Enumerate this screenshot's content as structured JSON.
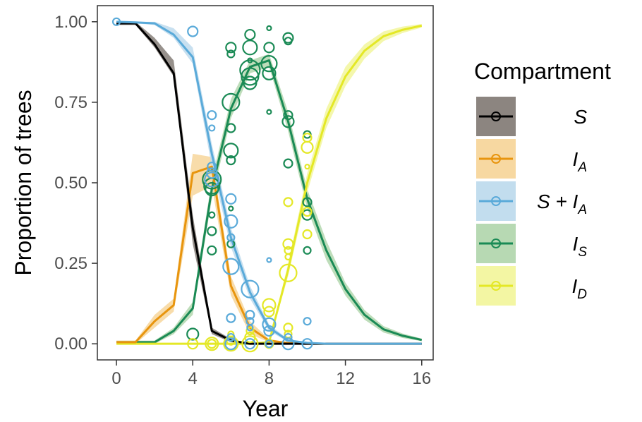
{
  "chart_data": {
    "type": "line",
    "xlabel": "Year",
    "ylabel": "Proportion of trees",
    "xlim": [
      -1,
      16.6
    ],
    "ylim": [
      -0.05,
      1.05
    ],
    "x_ticks": [
      0,
      4,
      8,
      12,
      16
    ],
    "x_tick_labels": [
      "0",
      "4",
      "8",
      "12",
      "16"
    ],
    "y_ticks": [
      0,
      0.25,
      0.5,
      0.75,
      1.0
    ],
    "y_tick_labels": [
      "0.00",
      "0.25",
      "0.50",
      "0.75",
      "1.00"
    ],
    "grid": false,
    "legend": {
      "title": "Compartment",
      "position": "right"
    },
    "series": [
      {
        "key": "IS",
        "label_main": "I",
        "label_sub": "S",
        "color": "#1a8a55",
        "band_color": "#b7d9b3",
        "x": [
          0,
          1,
          2,
          3,
          4,
          5,
          6,
          7,
          8,
          9,
          10,
          11,
          12,
          13,
          14,
          15,
          16
        ],
        "y": [
          0.005,
          0.005,
          0.005,
          0.04,
          0.11,
          0.48,
          0.73,
          0.86,
          0.88,
          0.69,
          0.45,
          0.29,
          0.17,
          0.09,
          0.045,
          0.025,
          0.012
        ],
        "band": [
          [
            0.0,
            0.01
          ],
          [
            0.0,
            0.01
          ],
          [
            0.0,
            0.01
          ],
          [
            0.03,
            0.05
          ],
          [
            0.09,
            0.13
          ],
          [
            0.45,
            0.51
          ],
          [
            0.7,
            0.76
          ],
          [
            0.84,
            0.88
          ],
          [
            0.86,
            0.9
          ],
          [
            0.66,
            0.72
          ],
          [
            0.42,
            0.48
          ],
          [
            0.26,
            0.32
          ],
          [
            0.15,
            0.19
          ],
          [
            0.075,
            0.105
          ],
          [
            0.035,
            0.055
          ],
          [
            0.018,
            0.032
          ],
          [
            0.008,
            0.016
          ]
        ],
        "points": [
          {
            "x": 4,
            "y": 0.03,
            "s": 8
          },
          {
            "x": 5,
            "y": 0.51,
            "s": 13
          },
          {
            "x": 5,
            "y": 0.49,
            "s": 11
          },
          {
            "x": 5,
            "y": 0.48,
            "s": 9
          },
          {
            "x": 5,
            "y": 0.4,
            "s": 4
          },
          {
            "x": 5,
            "y": 0.35,
            "s": 6
          },
          {
            "x": 5,
            "y": 0.29,
            "s": 6
          },
          {
            "x": 6,
            "y": 0.92,
            "s": 7
          },
          {
            "x": 6,
            "y": 0.9,
            "s": 5
          },
          {
            "x": 6,
            "y": 0.75,
            "s": 12
          },
          {
            "x": 6,
            "y": 0.67,
            "s": 6
          },
          {
            "x": 6,
            "y": 0.6,
            "s": 10
          },
          {
            "x": 6,
            "y": 0.57,
            "s": 6
          },
          {
            "x": 6,
            "y": 0.42,
            "s": 3
          },
          {
            "x": 6,
            "y": 0.31,
            "s": 5
          },
          {
            "x": 7,
            "y": 0.96,
            "s": 7
          },
          {
            "x": 7,
            "y": 0.92,
            "s": 10
          },
          {
            "x": 7,
            "y": 0.85,
            "s": 14
          },
          {
            "x": 7,
            "y": 0.83,
            "s": 12
          },
          {
            "x": 7,
            "y": 0.81,
            "s": 9
          },
          {
            "x": 7,
            "y": 0.88,
            "s": 3
          },
          {
            "x": 8,
            "y": 0.98,
            "s": 3
          },
          {
            "x": 8,
            "y": 0.92,
            "s": 7
          },
          {
            "x": 8,
            "y": 0.87,
            "s": 11
          },
          {
            "x": 8,
            "y": 0.84,
            "s": 9
          },
          {
            "x": 8,
            "y": 0.72,
            "s": 3
          },
          {
            "x": 9,
            "y": 0.95,
            "s": 7
          },
          {
            "x": 9,
            "y": 0.94,
            "s": 5
          },
          {
            "x": 9,
            "y": 0.71,
            "s": 6
          },
          {
            "x": 9,
            "y": 0.69,
            "s": 8
          },
          {
            "x": 9,
            "y": 0.56,
            "s": 6
          },
          {
            "x": 10,
            "y": 0.65,
            "s": 5
          },
          {
            "x": 10,
            "y": 0.44,
            "s": 6
          },
          {
            "x": 10,
            "y": 0.4,
            "s": 7
          },
          {
            "x": 10,
            "y": 0.29,
            "s": 5
          }
        ]
      },
      {
        "key": "ID",
        "label_main": "I",
        "label_sub": "D",
        "color": "#e4e826",
        "band_color": "#f3f6a3",
        "x": [
          0,
          1,
          2,
          3,
          4,
          5,
          6,
          7,
          8,
          9,
          10,
          11,
          12,
          13,
          14,
          15,
          16
        ],
        "y": [
          0,
          0,
          0,
          0,
          0,
          0,
          0,
          0,
          0.005,
          0.23,
          0.5,
          0.7,
          0.83,
          0.91,
          0.955,
          0.975,
          0.988
        ],
        "band": [
          [
            0,
            0
          ],
          [
            0,
            0
          ],
          [
            0,
            0
          ],
          [
            0,
            0
          ],
          [
            0,
            0
          ],
          [
            0,
            0
          ],
          [
            0,
            0
          ],
          [
            0,
            0.002
          ],
          [
            0.003,
            0.008
          ],
          [
            0.21,
            0.25
          ],
          [
            0.47,
            0.53
          ],
          [
            0.67,
            0.73
          ],
          [
            0.8,
            0.86
          ],
          [
            0.885,
            0.93
          ],
          [
            0.94,
            0.97
          ],
          [
            0.965,
            0.985
          ],
          [
            0.982,
            0.993
          ]
        ],
        "points": [
          {
            "x": 4,
            "y": 0.0,
            "s": 7
          },
          {
            "x": 5,
            "y": 0.0,
            "s": 9
          },
          {
            "x": 5,
            "y": 0.0,
            "s": 6
          },
          {
            "x": 6,
            "y": 0.0,
            "s": 10
          },
          {
            "x": 6,
            "y": 0.01,
            "s": 6
          },
          {
            "x": 6,
            "y": 0.03,
            "s": 4
          },
          {
            "x": 7,
            "y": 0.0,
            "s": 11
          },
          {
            "x": 7,
            "y": 0.02,
            "s": 7
          },
          {
            "x": 7,
            "y": 0.04,
            "s": 5
          },
          {
            "x": 8,
            "y": 0.12,
            "s": 9
          },
          {
            "x": 8,
            "y": 0.1,
            "s": 7
          },
          {
            "x": 8,
            "y": 0.0,
            "s": 6
          },
          {
            "x": 9,
            "y": 0.22,
            "s": 12
          },
          {
            "x": 9,
            "y": 0.44,
            "s": 6
          },
          {
            "x": 9,
            "y": 0.31,
            "s": 7
          },
          {
            "x": 9,
            "y": 0.29,
            "s": 5
          },
          {
            "x": 9,
            "y": 0.27,
            "s": 4
          },
          {
            "x": 9,
            "y": 0.05,
            "s": 6
          },
          {
            "x": 9,
            "y": 0.03,
            "s": 5
          },
          {
            "x": 10,
            "y": 0.64,
            "s": 6
          },
          {
            "x": 10,
            "y": 0.61,
            "s": 8
          },
          {
            "x": 10,
            "y": 0.55,
            "s": 3
          },
          {
            "x": 10,
            "y": 0.41,
            "s": 6
          },
          {
            "x": 10,
            "y": 0.34,
            "s": 6
          }
        ]
      },
      {
        "key": "IA",
        "label_main": "I",
        "label_sub": "A",
        "color": "#e8950e",
        "band_color": "#f7d8a1",
        "x": [
          0,
          1,
          2,
          3,
          4,
          5,
          6,
          7,
          8,
          9,
          10,
          11,
          12,
          13,
          14,
          15,
          16
        ],
        "y": [
          0.005,
          0.005,
          0.07,
          0.12,
          0.53,
          0.55,
          0.18,
          0.05,
          0.01,
          0.002,
          0.0,
          0.0,
          0.0,
          0.0,
          0.0,
          0.0,
          0.0
        ],
        "band": [
          [
            0.0,
            0.01
          ],
          [
            0.0,
            0.01
          ],
          [
            0.05,
            0.09
          ],
          [
            0.1,
            0.14
          ],
          [
            0.46,
            0.59
          ],
          [
            0.49,
            0.58
          ],
          [
            0.15,
            0.21
          ],
          [
            0.03,
            0.07
          ],
          [
            0.005,
            0.015
          ],
          [
            0,
            0.004
          ],
          [
            0,
            0
          ],
          [
            0,
            0
          ],
          [
            0,
            0
          ],
          [
            0,
            0
          ],
          [
            0,
            0
          ],
          [
            0,
            0
          ],
          [
            0,
            0
          ]
        ],
        "points": []
      },
      {
        "key": "S",
        "label_main": "S",
        "label_sub": "",
        "color": "#000000",
        "band_color": "#8c8580",
        "x": [
          0,
          1,
          2,
          3,
          4,
          5,
          6,
          7,
          8,
          9,
          10,
          11,
          12,
          13,
          14,
          15,
          16
        ],
        "y": [
          0.995,
          0.995,
          0.93,
          0.84,
          0.36,
          0.04,
          0.01,
          0.0,
          0.0,
          0.0,
          0.0,
          0.0,
          0.0,
          0.0,
          0.0,
          0.0,
          0.0
        ],
        "band": [
          [
            0.99,
            1.0
          ],
          [
            0.99,
            1.0
          ],
          [
            0.92,
            0.95
          ],
          [
            0.83,
            0.88
          ],
          [
            0.31,
            0.4
          ],
          [
            0.03,
            0.05
          ],
          [
            0.005,
            0.015
          ],
          [
            0,
            0.002
          ],
          [
            0,
            0
          ],
          [
            0,
            0
          ],
          [
            0,
            0
          ],
          [
            0,
            0
          ],
          [
            0,
            0
          ],
          [
            0,
            0
          ],
          [
            0,
            0
          ],
          [
            0,
            0
          ],
          [
            0,
            0
          ]
        ],
        "points": []
      },
      {
        "key": "SIA",
        "label_main": "S + I",
        "label_sub": "A",
        "color": "#5aaad9",
        "band_color": "#c2ddee",
        "x": [
          0,
          1,
          2,
          3,
          4,
          5,
          6,
          7,
          8,
          9,
          10,
          11,
          12,
          13,
          14,
          15,
          16
        ],
        "y": [
          1.0,
          0.998,
          0.995,
          0.96,
          0.89,
          0.59,
          0.33,
          0.16,
          0.05,
          0.01,
          0.003,
          0.0,
          0.0,
          0.0,
          0.0,
          0.0,
          0.0
        ],
        "band": [
          [
            0.998,
            1.0
          ],
          [
            0.995,
            1.0
          ],
          [
            0.99,
            1.0
          ],
          [
            0.95,
            0.98
          ],
          [
            0.87,
            0.92
          ],
          [
            0.55,
            0.62
          ],
          [
            0.3,
            0.36
          ],
          [
            0.14,
            0.18
          ],
          [
            0.04,
            0.06
          ],
          [
            0.006,
            0.014
          ],
          [
            0.001,
            0.005
          ],
          [
            0,
            0
          ],
          [
            0,
            0
          ],
          [
            0,
            0
          ],
          [
            0,
            0
          ],
          [
            0,
            0
          ],
          [
            0,
            0
          ]
        ],
        "points": [
          {
            "x": 0,
            "y": 1.0,
            "s": 5
          },
          {
            "x": 4,
            "y": 0.97,
            "s": 7
          },
          {
            "x": 5,
            "y": 0.71,
            "s": 6
          },
          {
            "x": 5,
            "y": 0.67,
            "s": 4
          },
          {
            "x": 5,
            "y": 0.55,
            "s": 6
          },
          {
            "x": 5,
            "y": 0.53,
            "s": 7
          },
          {
            "x": 5,
            "y": 0.51,
            "s": 10
          },
          {
            "x": 6,
            "y": 0.45,
            "s": 7
          },
          {
            "x": 6,
            "y": 0.38,
            "s": 9
          },
          {
            "x": 6,
            "y": 0.33,
            "s": 5
          },
          {
            "x": 6,
            "y": 0.24,
            "s": 11
          },
          {
            "x": 6,
            "y": 0.08,
            "s": 6
          },
          {
            "x": 6,
            "y": 0.02,
            "s": 5
          },
          {
            "x": 6,
            "y": 0.0,
            "s": 8
          },
          {
            "x": 7,
            "y": 0.17,
            "s": 12
          },
          {
            "x": 7,
            "y": 0.09,
            "s": 6
          },
          {
            "x": 7,
            "y": 0.07,
            "s": 5
          },
          {
            "x": 7,
            "y": 0.05,
            "s": 4
          },
          {
            "x": 7,
            "y": 0.0,
            "s": 7
          },
          {
            "x": 8,
            "y": 0.26,
            "s": 3
          },
          {
            "x": 8,
            "y": 0.06,
            "s": 9
          },
          {
            "x": 8,
            "y": 0.04,
            "s": 7
          },
          {
            "x": 8,
            "y": 0.0,
            "s": 5
          },
          {
            "x": 9,
            "y": 0.02,
            "s": 5
          },
          {
            "x": 9,
            "y": 0.0,
            "s": 8
          },
          {
            "x": 10,
            "y": 0.07,
            "s": 5
          },
          {
            "x": 10,
            "y": 0.0,
            "s": 7
          }
        ]
      }
    ],
    "legend_order": [
      "S",
      "IA",
      "SIA",
      "IS",
      "ID"
    ]
  }
}
